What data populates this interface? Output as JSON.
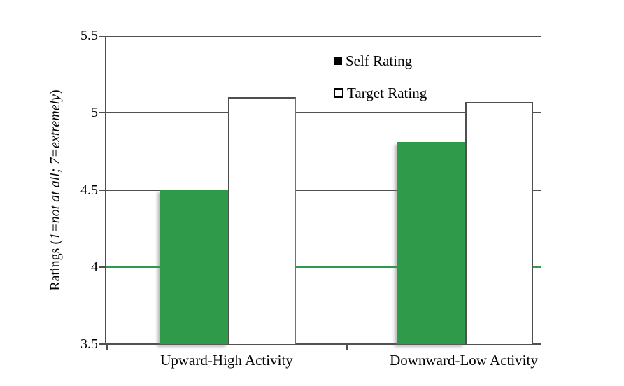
{
  "chart_data": {
    "type": "bar",
    "categories": [
      "Upward-High Activity",
      "Downward-Low Activity"
    ],
    "series": [
      {
        "name": "Self Rating",
        "values": [
          4.5,
          4.81
        ]
      },
      {
        "name": "Target Rating",
        "values": [
          5.1,
          5.07
        ]
      }
    ],
    "title": "",
    "xlabel": "",
    "ylabel": "Ratings (1=not at all; 7=extremely)",
    "ylabel_parts": {
      "prefix": "Ratings (",
      "italic": "1=not at all; 7=extremely",
      "suffix": ")"
    },
    "ylim": [
      3.5,
      5.5
    ],
    "ytick_values": [
      5.5,
      5.0,
      4.5,
      4.0,
      3.5
    ],
    "ytick_labels": [
      "5.5",
      "5",
      "4.5",
      "4",
      "3.5"
    ],
    "grid": true,
    "legend": {
      "position": "top-center",
      "entries": [
        {
          "label": "Self Rating",
          "marker": "filled-black-square"
        },
        {
          "label": "Target Rating",
          "marker": "open-square"
        }
      ]
    },
    "colors": {
      "self_bar_fill": "#2F9A49",
      "target_bar_fill": "#FFFFFF",
      "bar_border": "#4F4F4F",
      "axis_line": "#505050",
      "gridline": "#505050",
      "gridline_at_4": "#2F9A49",
      "text": "#000000",
      "background": "#FFFFFF"
    }
  }
}
